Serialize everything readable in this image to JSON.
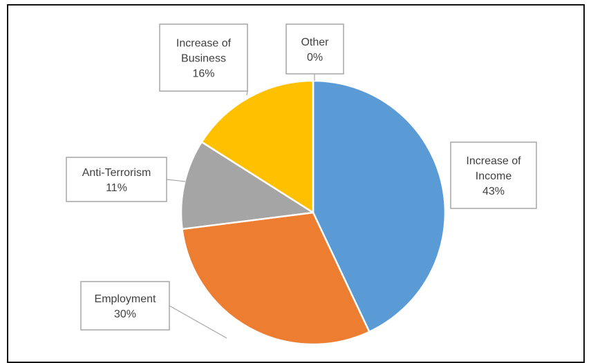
{
  "chart_data": {
    "type": "pie",
    "title": "",
    "start_angle_deg": 0,
    "direction": "clockwise",
    "slices": [
      {
        "name": "Increase of Income",
        "label_lines": [
          "Increase of",
          "Income",
          "43%"
        ],
        "value": 43,
        "color": "#5b9bd5"
      },
      {
        "name": "Employment",
        "label_lines": [
          "Employment",
          "30%"
        ],
        "value": 30,
        "color": "#ed7d31"
      },
      {
        "name": "Anti-Terrorism",
        "label_lines": [
          "Anti-Terrorism",
          "11%"
        ],
        "value": 11,
        "color": "#a5a5a5"
      },
      {
        "name": "Increase of Business",
        "label_lines": [
          "Increase of",
          "Business",
          "16%"
        ],
        "value": 16,
        "color": "#ffc000"
      },
      {
        "name": "Other",
        "label_lines": [
          "Other",
          "0%"
        ],
        "value": 0,
        "color": "#4472c4"
      }
    ],
    "legend": "none",
    "data_labels": "callouts"
  }
}
